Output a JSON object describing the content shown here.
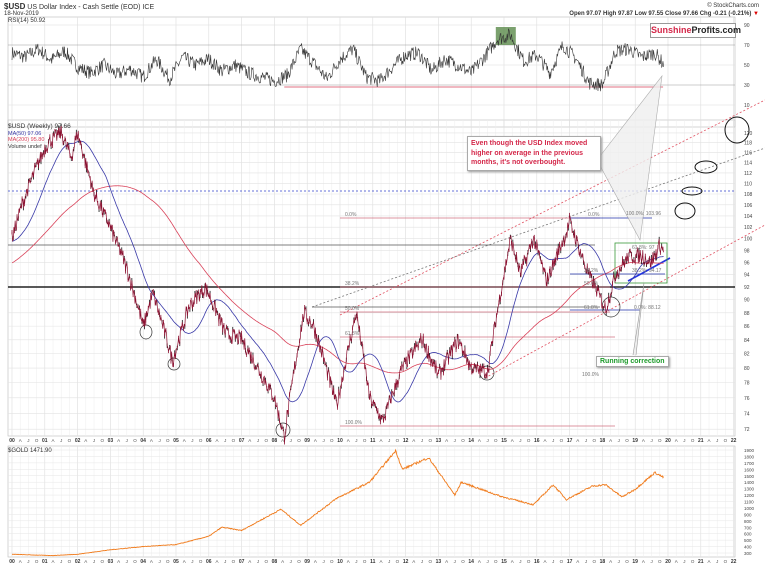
{
  "header": {
    "symbol": "$USD",
    "name": "US Dollar Index - Cash Settle (EOD)",
    "exchange": "ICE",
    "date": "18-Nov-2019",
    "watermark": "© StockCharts.com",
    "ohlc": "Open 97.07  High 97.87  Low 97.55  Close 97.66  Chg -0.21 (-0.21%)",
    "chg_arrow": "▼"
  },
  "logo": {
    "part1": "Sunshine",
    "part2": "Profits.com"
  },
  "rsi_legend": "RSI(14) 50.92",
  "main_legend": {
    "title": "$USD (Weekly) 97.66",
    "ma50": "MA(50) 97.06",
    "ma200": "MA(200) 95.80",
    "volume": "Volume undef"
  },
  "gold_legend": "$GOLD 1471.90",
  "annotations": {
    "overbought": "Even though the USD Index moved higher on average in the previous months, it's not overbought.",
    "running": "Running correction"
  },
  "fib_labels": {
    "left_0": "0.0%",
    "left_382": "38.2%",
    "left_50": "50.0%",
    "left_618": "61.8%",
    "left_100": "100.0%",
    "right_0": "0.0%",
    "right_100": "100.0%: 103.96",
    "right_618": "61.8%: 97",
    "right_382": "38.2%: 94.17",
    "right_382b": "38.2%",
    "right_50": "50.0%",
    "right_618b": "61.8%",
    "right_0b": "0.0%: 88.12",
    "right_100b": "100.0%"
  },
  "colors": {
    "price": "#8b1030",
    "ma50": "#3a3aa8",
    "ma200": "#d9435a",
    "gold": "#f07a1a",
    "note_red": "#d4284a",
    "note_green": "#1c9a2a"
  },
  "chart_data": [
    {
      "type": "line",
      "title": "RSI(14)",
      "ylim": [
        0,
        100
      ],
      "y_ticks": [
        "90",
        "70",
        "50",
        "30",
        "10"
      ],
      "x": [
        2000.0,
        2000.4,
        2000.8,
        2001.2,
        2001.6,
        2002.0,
        2002.4,
        2002.8,
        2003.2,
        2003.6,
        2004.0,
        2004.4,
        2004.8,
        2005.2,
        2005.6,
        2006.0,
        2006.4,
        2006.8,
        2007.2,
        2007.6,
        2008.0,
        2008.4,
        2008.8,
        2009.2,
        2009.6,
        2010.0,
        2010.4,
        2010.8,
        2011.2,
        2011.6,
        2012.0,
        2012.4,
        2012.8,
        2013.2,
        2013.6,
        2014.0,
        2014.4,
        2014.8,
        2015.2,
        2015.6,
        2016.0,
        2016.4,
        2016.8,
        2017.2,
        2017.6,
        2018.0,
        2018.4,
        2018.8,
        2019.2,
        2019.6,
        2019.87
      ],
      "values": [
        62,
        58,
        66,
        55,
        64,
        48,
        42,
        50,
        40,
        46,
        38,
        56,
        36,
        58,
        50,
        56,
        44,
        50,
        42,
        38,
        34,
        40,
        66,
        52,
        36,
        56,
        66,
        38,
        34,
        48,
        60,
        62,
        44,
        56,
        50,
        42,
        58,
        76,
        80,
        54,
        60,
        42,
        70,
        56,
        32,
        30,
        64,
        66,
        58,
        62,
        50.92
      ]
    },
    {
      "type": "line",
      "title": "$USD (Weekly)",
      "scale": "log",
      "ylim": [
        71,
        121
      ],
      "y_ticks": [
        120,
        118,
        116,
        114,
        112,
        110,
        108,
        106,
        104,
        102,
        100,
        98,
        96,
        94,
        92,
        90,
        88,
        86,
        84,
        82,
        80,
        78,
        76,
        74,
        72
      ],
      "x_ticks": [
        "00",
        "01",
        "02",
        "03",
        "04",
        "05",
        "06",
        "07",
        "08",
        "09",
        "10",
        "11",
        "12",
        "13",
        "14",
        "15",
        "16",
        "17",
        "18",
        "19",
        "20",
        "21",
        "22"
      ],
      "x_minor": [
        "A",
        "J",
        "O"
      ],
      "series": [
        {
          "name": "$USD",
          "x": [
            2000.0,
            2000.3,
            2000.8,
            2001.1,
            2001.5,
            2001.8,
            2002.0,
            2002.5,
            2003.0,
            2003.5,
            2004.0,
            2004.3,
            2004.9,
            2005.4,
            2005.9,
            2006.5,
            2007.0,
            2007.5,
            2008.0,
            2008.3,
            2008.9,
            2009.2,
            2009.9,
            2010.5,
            2010.9,
            2011.3,
            2011.9,
            2012.5,
            2013.0,
            2013.6,
            2014.0,
            2014.5,
            2015.2,
            2015.5,
            2015.9,
            2016.3,
            2016.9,
            2017.0,
            2017.5,
            2018.1,
            2018.4,
            2018.8,
            2019.2,
            2019.5,
            2019.75,
            2019.87
          ],
          "values": [
            100,
            106,
            114,
            118,
            120,
            115,
            120,
            108,
            102,
            95,
            86,
            91,
            81,
            89,
            92,
            85,
            84,
            80,
            76,
            71,
            88,
            86,
            75,
            88,
            76,
            73,
            80,
            84,
            79,
            84,
            80,
            79.5,
            100,
            94,
            100,
            93,
            101,
            103,
            95,
            88.5,
            94,
            97,
            97,
            96,
            99,
            97.66
          ]
        },
        {
          "name": "MA(50)",
          "last": 97.06
        },
        {
          "name": "MA(200)",
          "last": 95.8
        }
      ]
    },
    {
      "type": "line",
      "title": "$GOLD",
      "ylim": [
        250,
        1950
      ],
      "y_ticks": [
        1900,
        1800,
        1700,
        1600,
        1500,
        1400,
        1300,
        1200,
        1100,
        1000,
        900,
        800,
        700,
        600,
        500,
        400,
        300
      ],
      "series": [
        {
          "name": "$GOLD",
          "x": [
            2000.0,
            2001.2,
            2002.0,
            2003.0,
            2004.0,
            2005.0,
            2006.0,
            2006.4,
            2007.0,
            2008.2,
            2008.8,
            2009.9,
            2010.9,
            2011.7,
            2011.9,
            2012.7,
            2013.5,
            2013.7,
            2014.9,
            2015.9,
            2016.5,
            2016.9,
            2017.7,
            2018.1,
            2018.6,
            2019.0,
            2019.6,
            2019.87
          ],
          "values": [
            280,
            260,
            280,
            350,
            400,
            430,
            560,
            700,
            650,
            980,
            730,
            1150,
            1400,
            1890,
            1600,
            1780,
            1200,
            1400,
            1180,
            1050,
            1360,
            1130,
            1340,
            1360,
            1170,
            1290,
            1550,
            1471.9
          ]
        }
      ]
    }
  ]
}
